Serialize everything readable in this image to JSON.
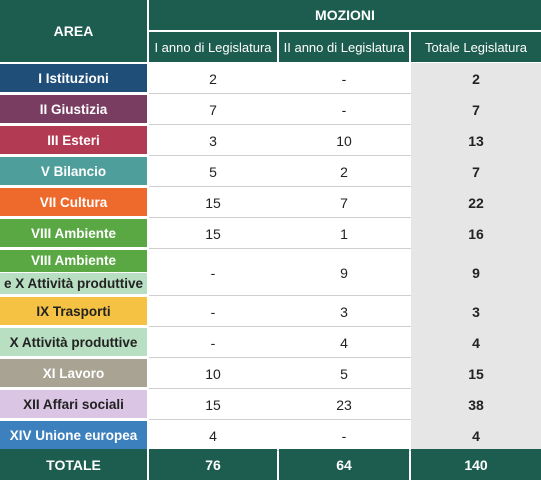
{
  "header": {
    "area": "AREA",
    "group": "MOZIONI",
    "columns": [
      "I anno di Legislatura",
      "II anno di Legislatura",
      "Totale Legislatura"
    ]
  },
  "rows": [
    {
      "area": [
        "I Istituzioni"
      ],
      "values": [
        2,
        "-",
        2
      ]
    },
    {
      "area": [
        "II Giustizia"
      ],
      "values": [
        7,
        "-",
        7
      ]
    },
    {
      "area": [
        "III Esteri"
      ],
      "values": [
        3,
        10,
        13
      ]
    },
    {
      "area": [
        "V Bilancio"
      ],
      "values": [
        5,
        2,
        7
      ]
    },
    {
      "area": [
        "VII Cultura"
      ],
      "values": [
        15,
        7,
        22
      ]
    },
    {
      "area": [
        "VIII Ambiente"
      ],
      "values": [
        15,
        1,
        16
      ]
    },
    {
      "area": [
        "VIII Ambiente",
        "e X Attività produttive"
      ],
      "values": [
        "-",
        9,
        9
      ]
    },
    {
      "area": [
        "IX Trasporti"
      ],
      "values": [
        "-",
        3,
        3
      ]
    },
    {
      "area": [
        "X Attività produttive"
      ],
      "values": [
        "-",
        4,
        4
      ]
    },
    {
      "area": [
        "XI Lavoro"
      ],
      "values": [
        10,
        5,
        15
      ]
    },
    {
      "area": [
        "XII Affari sociali"
      ],
      "values": [
        15,
        23,
        38
      ]
    },
    {
      "area": [
        "XIV Unione europea"
      ],
      "values": [
        4,
        "-",
        4
      ]
    }
  ],
  "total": {
    "label": "TOTALE",
    "values": [
      76,
      64,
      140
    ]
  }
}
